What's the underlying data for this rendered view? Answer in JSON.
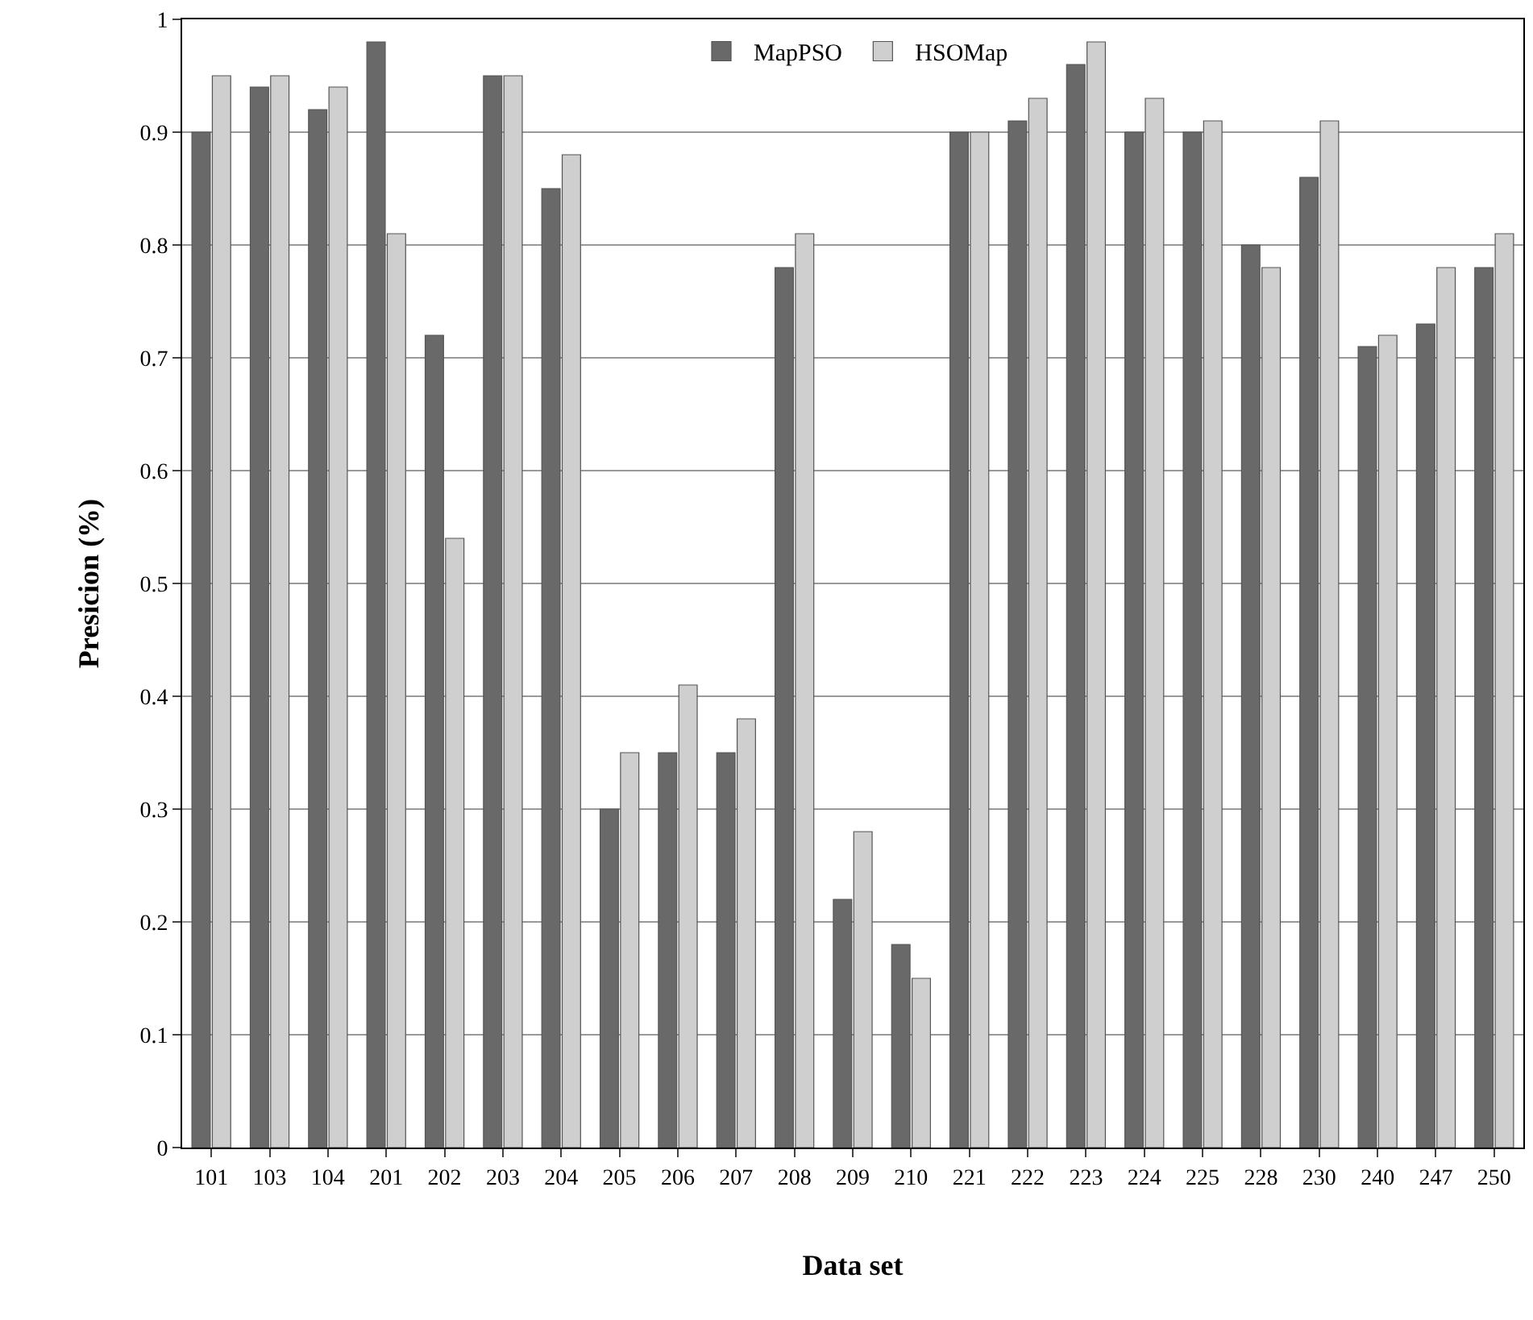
{
  "chart_data": {
    "type": "bar",
    "xlabel": "Data set",
    "ylabel": "Presicion (%)",
    "categories": [
      "101",
      "103",
      "104",
      "201",
      "202",
      "203",
      "204",
      "205",
      "206",
      "207",
      "208",
      "209",
      "210",
      "221",
      "222",
      "223",
      "224",
      "225",
      "228",
      "230",
      "240",
      "247",
      "250"
    ],
    "series": [
      {
        "name": "MapPSO",
        "color": "#696969",
        "values": [
          0.9,
          0.94,
          0.92,
          0.98,
          0.72,
          0.95,
          0.85,
          0.3,
          0.35,
          0.35,
          0.78,
          0.22,
          0.18,
          0.9,
          0.91,
          0.96,
          0.9,
          0.9,
          0.8,
          0.86,
          0.71,
          0.73,
          0.78
        ]
      },
      {
        "name": "HSOMap",
        "color": "#cfcfcf",
        "values": [
          0.95,
          0.95,
          0.94,
          0.81,
          0.54,
          0.95,
          0.88,
          0.35,
          0.41,
          0.38,
          0.81,
          0.28,
          0.15,
          0.9,
          0.93,
          0.98,
          0.93,
          0.91,
          0.78,
          0.91,
          0.72,
          0.78,
          0.81
        ]
      }
    ],
    "ylim": [
      0,
      1
    ],
    "yticks": [
      0,
      0.1,
      0.2,
      0.3,
      0.4,
      0.5,
      0.6,
      0.7,
      0.8,
      0.9,
      1
    ],
    "grid": "y",
    "legend": "top"
  }
}
